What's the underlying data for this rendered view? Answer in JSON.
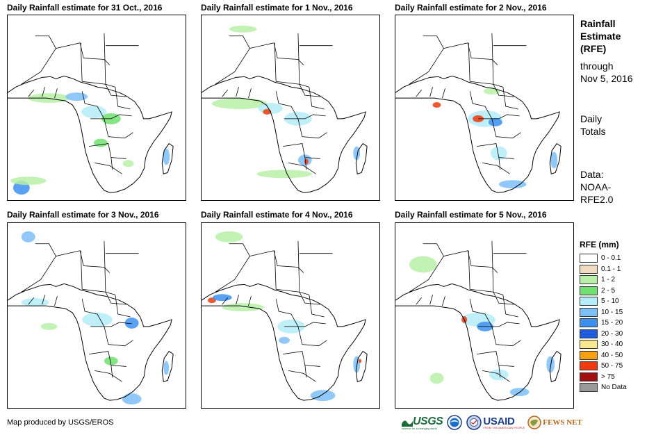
{
  "panels": [
    {
      "title": "Daily Rainfall estimate for 31 Oct., 2016",
      "date": "31 Oct., 2016"
    },
    {
      "title": "Daily Rainfall estimate for 1 Nov., 2016",
      "date": "1 Nov., 2016"
    },
    {
      "title": "Daily Rainfall estimate for 2 Nov., 2016",
      "date": "2 Nov., 2016"
    },
    {
      "title": "Daily Rainfall estimate for 3 Nov., 2016",
      "date": "3 Nov., 2016"
    },
    {
      "title": "Daily Rainfall estimate for 4 Nov., 2016",
      "date": "4 Nov., 2016"
    },
    {
      "title": "Daily Rainfall estimate for 5 Nov., 2016",
      "date": "5 Nov., 2016"
    }
  ],
  "sidebar": {
    "heading_line1": "Rainfall",
    "heading_line2": "Estimate",
    "heading_line3": "(RFE)",
    "through_line1": "through",
    "through_line2": "Nov 5, 2016",
    "totals_line1": "Daily",
    "totals_line2": "Totals",
    "data_line1": "Data:",
    "data_line2": "NOAA-",
    "data_line3": "RFE2.0"
  },
  "legend": {
    "title": "RFE (mm)",
    "items": [
      {
        "label": "0 - 0.1",
        "color": "#ffffff"
      },
      {
        "label": "0.1 - 1",
        "color": "#f0dcc0"
      },
      {
        "label": "1 - 2",
        "color": "#b8f0a8"
      },
      {
        "label": "2 - 5",
        "color": "#70e070"
      },
      {
        "label": "5 - 10",
        "color": "#b4ecf8"
      },
      {
        "label": "10 - 15",
        "color": "#7cc0f8"
      },
      {
        "label": "15 - 20",
        "color": "#3c90f0"
      },
      {
        "label": "20 - 30",
        "color": "#1c5ce0"
      },
      {
        "label": "30 - 40",
        "color": "#f8e890"
      },
      {
        "label": "40 - 50",
        "color": "#f8a010"
      },
      {
        "label": "50 - 75",
        "color": "#f03c0c"
      },
      {
        "label": "> 75",
        "color": "#a01010"
      },
      {
        "label": "No Data",
        "color": "#999999"
      }
    ]
  },
  "footer": {
    "credit": "Map produced by USGS/EROS",
    "logos": {
      "usgs": "USGS",
      "usgs_tagline": "science for a changing world",
      "usaid": "USAID",
      "usaid_tagline": "FROM THE AMERICAN PEOPLE",
      "fewsnet": "FEWS NET"
    }
  }
}
